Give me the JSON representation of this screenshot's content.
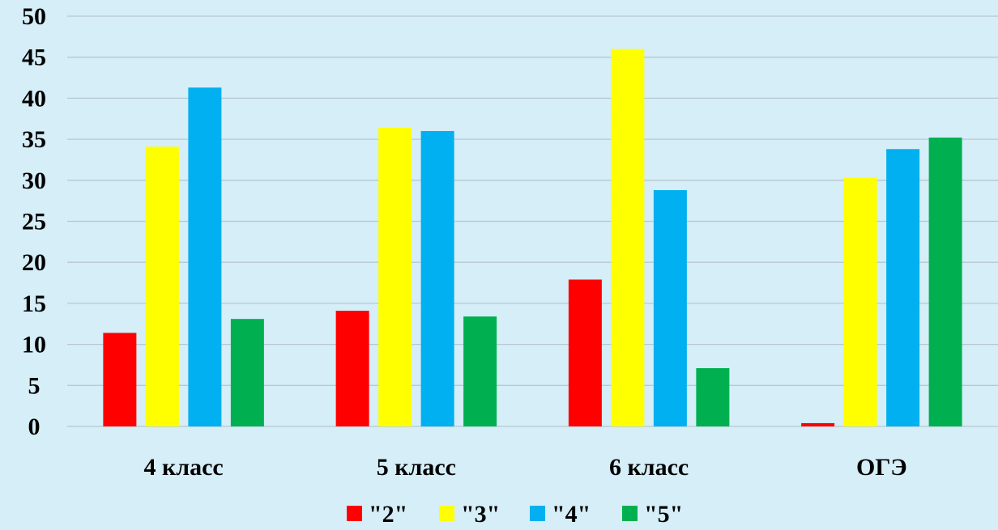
{
  "chart_data": {
    "type": "bar",
    "categories": [
      "4 класс",
      "5 класс",
      "6 класс",
      "ОГЭ"
    ],
    "series": [
      {
        "name": "\"2\"",
        "color": "#ff0000",
        "values": [
          11.4,
          14.1,
          17.9,
          0.4
        ]
      },
      {
        "name": "\"3\"",
        "color": "#ffff00",
        "values": [
          34.1,
          36.4,
          46.0,
          30.3
        ]
      },
      {
        "name": "\"4\"",
        "color": "#00b0f0",
        "values": [
          41.3,
          36.0,
          28.8,
          33.8
        ]
      },
      {
        "name": "\"5\"",
        "color": "#00b050",
        "values": [
          13.1,
          13.4,
          7.1,
          35.2
        ]
      }
    ],
    "y_ticks": [
      "0",
      "5",
      "10",
      "15",
      "20",
      "25",
      "30",
      "35",
      "40",
      "45",
      "50"
    ],
    "ylim": [
      0,
      50
    ],
    "grid": true,
    "legend_position": "bottom"
  },
  "background_color": "#d5eef8"
}
